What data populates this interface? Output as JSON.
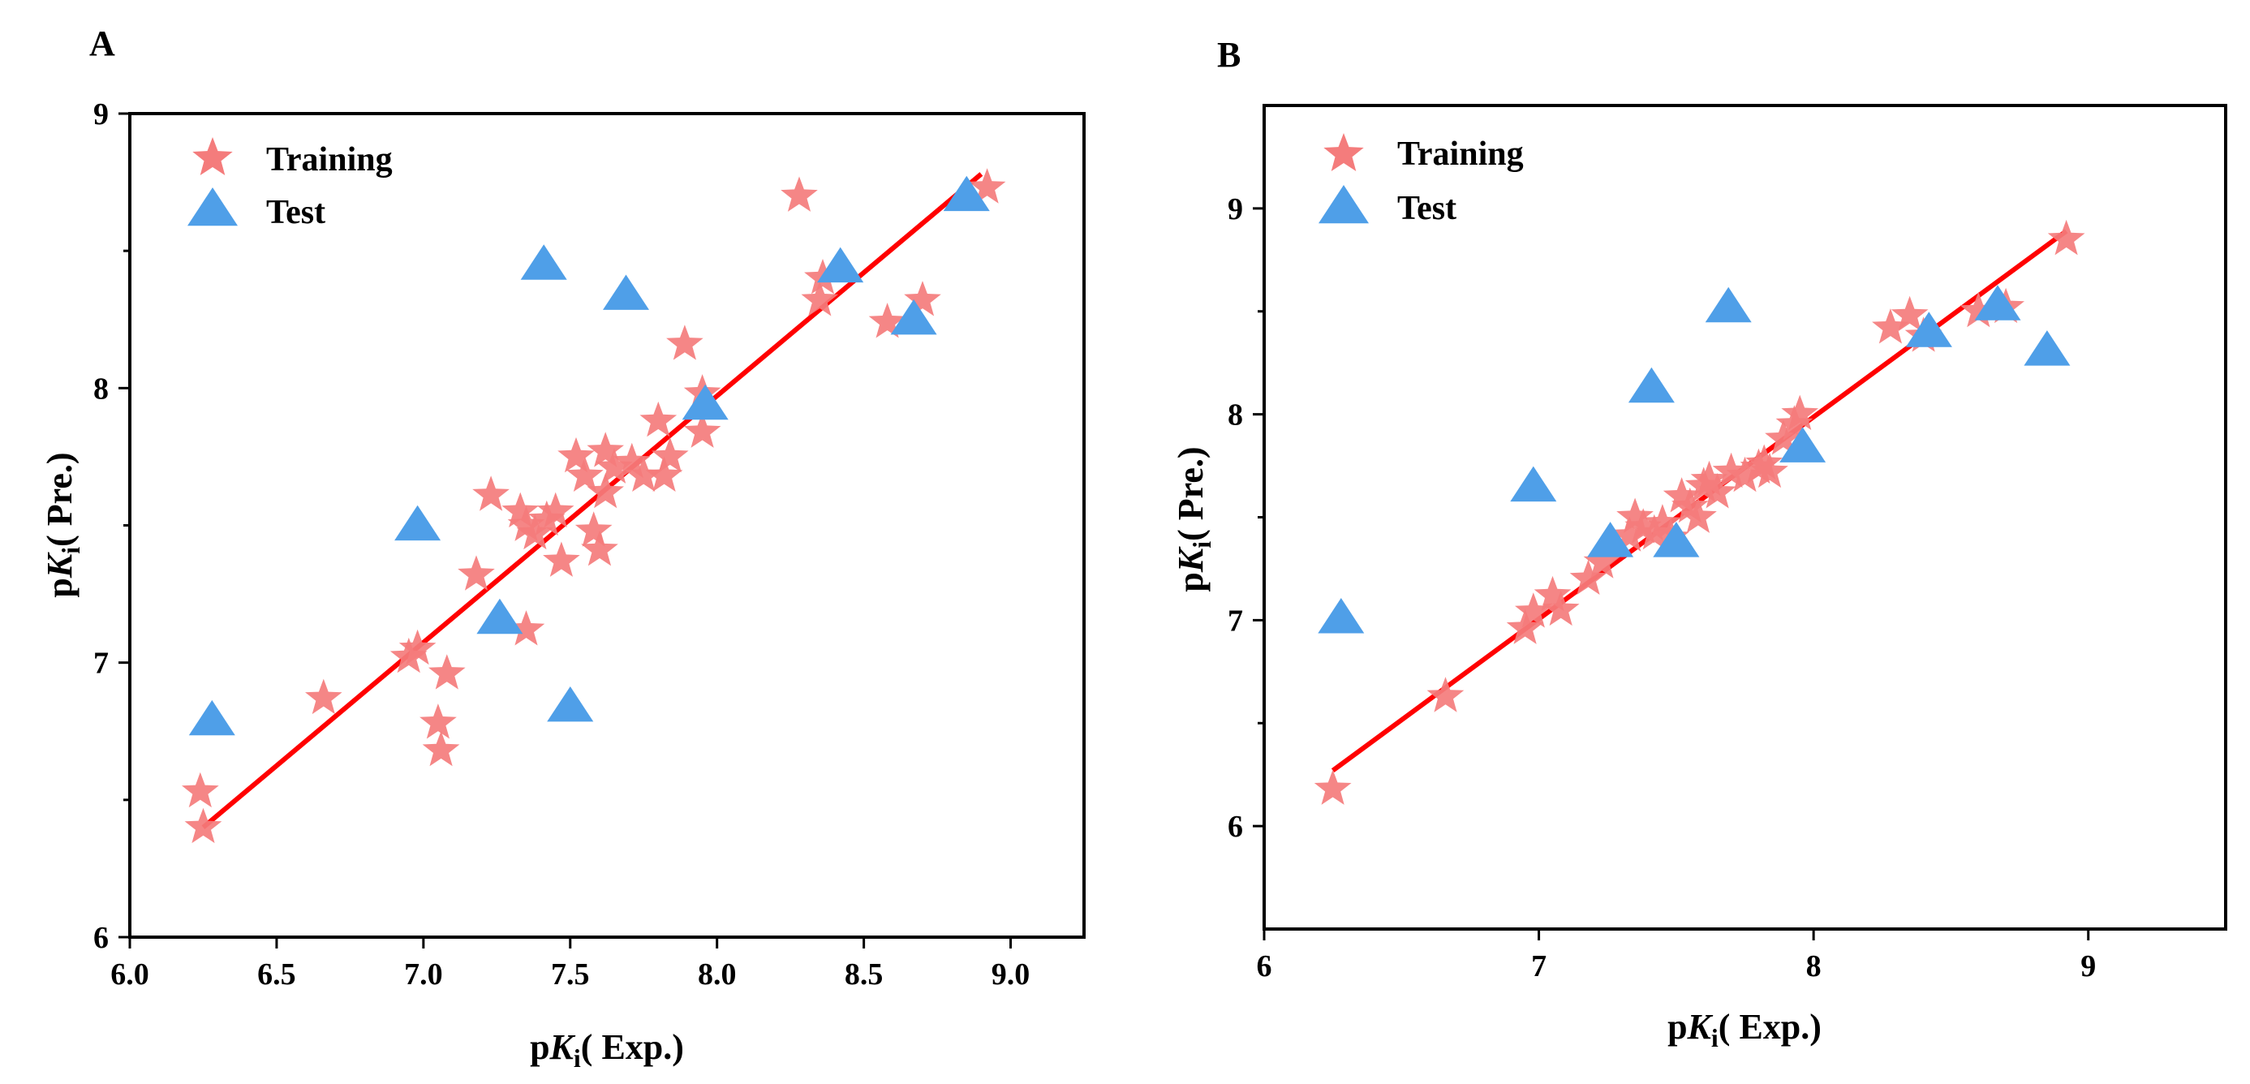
{
  "chart_data": [
    {
      "panel": "A",
      "type": "scatter",
      "xlabel_parts": [
        "p",
        "K",
        "i",
        "( Exp.)"
      ],
      "ylabel_parts": [
        "p",
        "K",
        "i",
        "( Pre.)"
      ],
      "xlim": [
        6.0,
        9.25
      ],
      "ylim": [
        6.0,
        9.0
      ],
      "xticks": [
        6.0,
        6.5,
        7.0,
        7.5,
        8.0,
        8.5,
        9.0
      ],
      "xtick_labels": [
        "6.0",
        "6.5",
        "7.0",
        "7.5",
        "8.0",
        "8.5",
        "9.0"
      ],
      "yticks": [
        6,
        7,
        8,
        9
      ],
      "ytick_labels": [
        "6",
        "7",
        "8",
        "9"
      ],
      "legend": [
        "Training",
        "Test"
      ],
      "colors": {
        "training": "#f47c7c",
        "test": "#4f9fe8",
        "fit": "#ff0000"
      },
      "fit_line": {
        "x": [
          6.25,
          8.9
        ],
        "y": [
          6.4,
          8.78
        ]
      },
      "series": [
        {
          "name": "Training",
          "marker": "star",
          "points": [
            [
              6.24,
              6.53
            ],
            [
              6.25,
              6.4
            ],
            [
              6.66,
              6.87
            ],
            [
              6.95,
              7.02
            ],
            [
              6.98,
              7.05
            ],
            [
              7.05,
              6.78
            ],
            [
              7.06,
              6.68
            ],
            [
              7.08,
              6.96
            ],
            [
              7.18,
              7.32
            ],
            [
              7.23,
              7.61
            ],
            [
              7.33,
              7.55
            ],
            [
              7.35,
              7.5
            ],
            [
              7.35,
              7.12
            ],
            [
              7.38,
              7.47
            ],
            [
              7.42,
              7.52
            ],
            [
              7.45,
              7.55
            ],
            [
              7.47,
              7.37
            ],
            [
              7.52,
              7.75
            ],
            [
              7.55,
              7.68
            ],
            [
              7.58,
              7.48
            ],
            [
              7.6,
              7.41
            ],
            [
              7.62,
              7.62
            ],
            [
              7.62,
              7.77
            ],
            [
              7.65,
              7.71
            ],
            [
              7.71,
              7.73
            ],
            [
              7.75,
              7.68
            ],
            [
              7.8,
              7.88
            ],
            [
              7.82,
              7.68
            ],
            [
              7.84,
              7.75
            ],
            [
              7.89,
              8.16
            ],
            [
              7.95,
              7.84
            ],
            [
              7.95,
              7.98
            ],
            [
              8.28,
              8.7
            ],
            [
              8.35,
              8.32
            ],
            [
              8.36,
              8.4
            ],
            [
              8.58,
              8.24
            ],
            [
              8.7,
              8.32
            ],
            [
              8.92,
              8.73
            ]
          ]
        },
        {
          "name": "Test",
          "marker": "triangle",
          "points": [
            [
              6.28,
              6.79
            ],
            [
              6.98,
              7.5
            ],
            [
              7.26,
              7.16
            ],
            [
              7.41,
              8.45
            ],
            [
              7.5,
              6.84
            ],
            [
              7.69,
              8.34
            ],
            [
              7.96,
              7.94
            ],
            [
              8.42,
              8.44
            ],
            [
              8.67,
              8.25
            ],
            [
              8.85,
              8.7
            ]
          ]
        }
      ]
    },
    {
      "panel": "B",
      "type": "scatter",
      "xlabel_parts": [
        "p",
        "K",
        "i",
        "( Exp.)"
      ],
      "ylabel_parts": [
        "p",
        "K",
        "i",
        "( Pre.)"
      ],
      "xlim": [
        6.0,
        9.5
      ],
      "ylim": [
        5.5,
        9.5
      ],
      "xticks": [
        6,
        7,
        8,
        9
      ],
      "xtick_labels": [
        "6",
        "7",
        "8",
        "9"
      ],
      "yticks": [
        6,
        7,
        8,
        9
      ],
      "ytick_labels": [
        "6",
        "7",
        "8",
        "9"
      ],
      "legend": [
        "Training",
        "Test"
      ],
      "colors": {
        "training": "#f47c7c",
        "test": "#4f9fe8",
        "fit": "#ff0000"
      },
      "fit_line": {
        "x": [
          6.25,
          8.92
        ],
        "y": [
          6.27,
          8.89
        ]
      },
      "series": [
        {
          "name": "Training",
          "marker": "star",
          "points": [
            [
              6.25,
              6.18
            ],
            [
              6.66,
              6.63
            ],
            [
              6.95,
              6.96
            ],
            [
              6.98,
              7.04
            ],
            [
              7.05,
              7.12
            ],
            [
              7.08,
              7.05
            ],
            [
              7.18,
              7.2
            ],
            [
              7.23,
              7.28
            ],
            [
              7.33,
              7.41
            ],
            [
              7.35,
              7.5
            ],
            [
              7.38,
              7.45
            ],
            [
              7.42,
              7.42
            ],
            [
              7.45,
              7.47
            ],
            [
              7.48,
              7.4
            ],
            [
              7.52,
              7.6
            ],
            [
              7.55,
              7.55
            ],
            [
              7.58,
              7.5
            ],
            [
              7.6,
              7.65
            ],
            [
              7.62,
              7.68
            ],
            [
              7.65,
              7.62
            ],
            [
              7.7,
              7.72
            ],
            [
              7.75,
              7.7
            ],
            [
              7.8,
              7.74
            ],
            [
              7.82,
              7.76
            ],
            [
              7.84,
              7.72
            ],
            [
              7.89,
              7.88
            ],
            [
              7.93,
              7.95
            ],
            [
              7.95,
              8.0
            ],
            [
              8.28,
              8.42
            ],
            [
              8.35,
              8.48
            ],
            [
              8.4,
              8.38
            ],
            [
              8.6,
              8.5
            ],
            [
              8.7,
              8.52
            ],
            [
              8.92,
              8.85
            ]
          ]
        },
        {
          "name": "Test",
          "marker": "triangle",
          "points": [
            [
              6.28,
              7.01
            ],
            [
              6.98,
              7.65
            ],
            [
              7.26,
              7.38
            ],
            [
              7.41,
              8.13
            ],
            [
              7.5,
              7.38
            ],
            [
              7.69,
              8.52
            ],
            [
              7.96,
              7.84
            ],
            [
              8.42,
              8.4
            ],
            [
              8.67,
              8.53
            ],
            [
              8.85,
              8.31
            ]
          ]
        }
      ]
    }
  ]
}
